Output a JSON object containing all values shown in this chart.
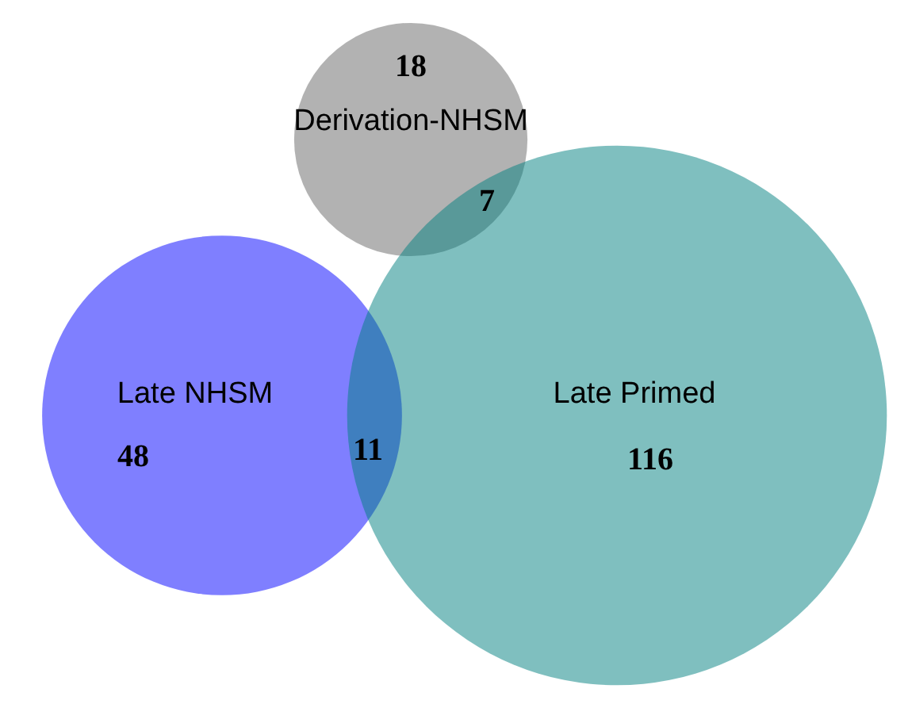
{
  "chart_data": {
    "type": "other",
    "categories": [
      "Derivation-NHSM",
      "Late NHSM",
      "Late Primed"
    ],
    "values": [
      18,
      48,
      116
    ],
    "colors": [
      "#666666",
      "#0000ff",
      "#008080"
    ],
    "data_labels": true,
    "annotations": [
      "7",
      "11"
    ]
  }
}
